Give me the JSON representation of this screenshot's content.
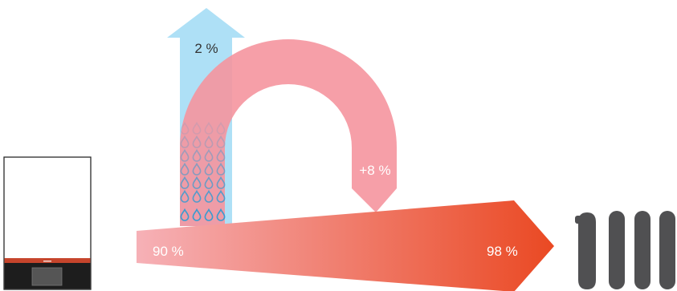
{
  "diagram": {
    "labels": {
      "exhaust_loss": "2 %",
      "recovered_gain": "+8 %",
      "input_efficiency": "90 %",
      "output_efficiency": "98 %"
    },
    "colors": {
      "exhaust_arrow": "#aee0f6",
      "recovery_arc": "#f5959e",
      "main_arrow_start": "#f6b1b7",
      "main_arrow_end": "#ea4923",
      "droplet": "#3a9bd0",
      "boiler_accent": "#c6452c",
      "boiler_panel": "#1d1d1d",
      "radiator": "#505052",
      "label_light": "#ffffff",
      "label_dark": "#333333"
    },
    "icons": {
      "boiler": "boiler-icon",
      "radiator": "radiator-icon",
      "droplets": "water-droplet-icon"
    }
  }
}
